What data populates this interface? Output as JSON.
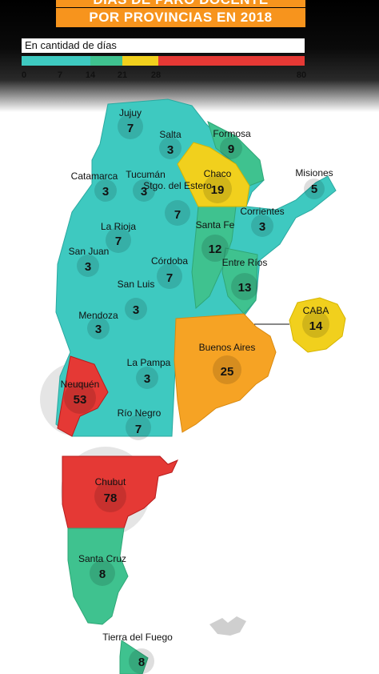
{
  "title_line1": "DÍAS DE PARO DOCENTE",
  "title_line2": "POR PROVINCIAS EN 2018",
  "legend": {
    "label": "En cantidad de días",
    "ticks": [
      "0",
      "7",
      "14",
      "21",
      "28",
      "80"
    ],
    "colors": [
      "#3ec9c0",
      "#3fc28f",
      "#f1d01d",
      "#f6a324",
      "#e53935"
    ]
  },
  "provinces": [
    {
      "id": "jujuy",
      "name": "Jujuy",
      "days": "7"
    },
    {
      "id": "salta",
      "name": "Salta",
      "days": "3"
    },
    {
      "id": "formosa",
      "name": "Formosa",
      "days": "9"
    },
    {
      "id": "chaco",
      "name": "Chaco",
      "days": "19"
    },
    {
      "id": "misiones",
      "name": "Misiones",
      "days": "5"
    },
    {
      "id": "catamarca",
      "name": "Catamarca",
      "days": "3"
    },
    {
      "id": "tucuman",
      "name": "Tucumán",
      "days": "3"
    },
    {
      "id": "stgo",
      "name": "Stgo. del Estero",
      "days": "7"
    },
    {
      "id": "corrientes",
      "name": "Corrientes",
      "days": "3"
    },
    {
      "id": "larioja",
      "name": "La Rioja",
      "days": "7"
    },
    {
      "id": "santafe",
      "name": "Santa Fe",
      "days": "12"
    },
    {
      "id": "sanjuan",
      "name": "San Juan",
      "days": "3"
    },
    {
      "id": "cordoba",
      "name": "Córdoba",
      "days": "7"
    },
    {
      "id": "entrerios",
      "name": "Entre Ríos",
      "days": "13"
    },
    {
      "id": "sanluis",
      "name": "San Luis",
      "days": "3"
    },
    {
      "id": "caba",
      "name": "CABA",
      "days": "14"
    },
    {
      "id": "mendoza",
      "name": "Mendoza",
      "days": "3"
    },
    {
      "id": "buenosaires",
      "name": "Buenos Aires",
      "days": "25"
    },
    {
      "id": "lapampa",
      "name": "La Pampa",
      "days": "3"
    },
    {
      "id": "neuquen",
      "name": "Neuquén",
      "days": "53"
    },
    {
      "id": "rionegro",
      "name": "Río Negro",
      "days": "7"
    },
    {
      "id": "chubut",
      "name": "Chubut",
      "days": "78"
    },
    {
      "id": "santacruz",
      "name": "Santa Cruz",
      "days": "8"
    },
    {
      "id": "tdf",
      "name": "Tierra del Fuego",
      "days": "8"
    }
  ]
}
